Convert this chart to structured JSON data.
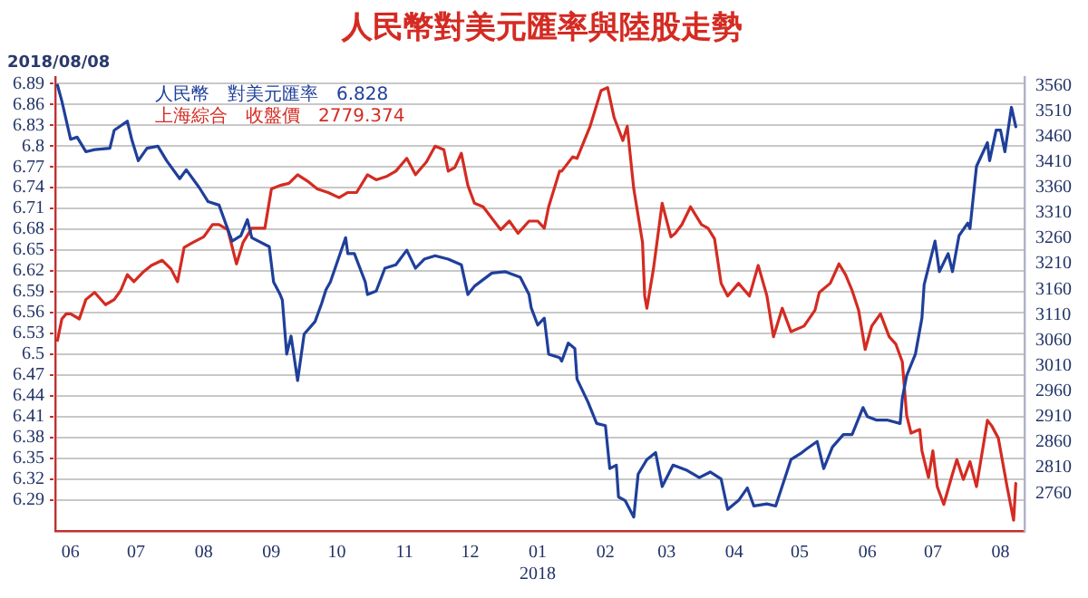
{
  "chart_data": {
    "type": "line",
    "title": "人民幣對美元匯率與陸股走勢",
    "annotations": [
      "2018/08/08"
    ],
    "legend": "top left",
    "grid": "y",
    "marker": "none",
    "line_style": "solid",
    "xlim": [
      "2017-05-25",
      "2018-08-12"
    ],
    "xticks": [
      {
        "value": "2017-06-01",
        "label": "06"
      },
      {
        "value": "2017-07-01",
        "label": "07"
      },
      {
        "value": "2017-08-01",
        "label": "08"
      },
      {
        "value": "2017-09-01",
        "label": "09"
      },
      {
        "value": "2017-10-01",
        "label": "10"
      },
      {
        "value": "2017-11-01",
        "label": "11"
      },
      {
        "value": "2017-12-01",
        "label": "12"
      },
      {
        "value": "2018-01-01",
        "label": "01\n2018"
      },
      {
        "value": "2018-02-01",
        "label": "02"
      },
      {
        "value": "2018-03-01",
        "label": "03"
      },
      {
        "value": "2018-04-01",
        "label": "04"
      },
      {
        "value": "2018-05-01",
        "label": "05"
      },
      {
        "value": "2018-06-01",
        "label": "06"
      },
      {
        "value": "2018-07-01",
        "label": "07"
      },
      {
        "value": "2018-08-01",
        "label": "08"
      }
    ],
    "ylim": [
      6.245,
      6.9
    ],
    "yticks": [
      6.29,
      6.32,
      6.35,
      6.38,
      6.41,
      6.44,
      6.47,
      6.5,
      6.53,
      6.56,
      6.59,
      6.62,
      6.65,
      6.68,
      6.71,
      6.74,
      6.77,
      6.8,
      6.83,
      6.86,
      6.89
    ],
    "y2lim": [
      2686,
      3577
    ],
    "y2ticks": [
      2760,
      2810,
      2860,
      2910,
      2960,
      3010,
      3060,
      3110,
      3160,
      3210,
      3260,
      3310,
      3360,
      3410,
      3460,
      3510,
      3560
    ],
    "series": [
      {
        "name": "人民幣　對美元匯率　6.828",
        "color": "#1f3f9a",
        "axis": "y",
        "x": [
          "2017-05-26",
          "2017-05-28",
          "2017-06-01",
          "2017-06-04",
          "2017-06-08",
          "2017-06-12",
          "2017-06-19",
          "2017-06-21",
          "2017-06-27",
          "2017-06-29",
          "2017-07-02",
          "2017-07-06",
          "2017-07-11",
          "2017-07-15",
          "2017-07-21",
          "2017-07-24",
          "2017-07-30",
          "2017-08-03",
          "2017-08-08",
          "2017-08-14",
          "2017-08-18",
          "2017-08-21",
          "2017-08-23",
          "2017-08-31",
          "2017-09-02",
          "2017-09-05",
          "2017-09-06",
          "2017-09-08",
          "2017-09-10",
          "2017-09-13",
          "2017-09-16",
          "2017-09-21",
          "2017-09-24",
          "2017-09-26",
          "2017-09-28",
          "2017-10-05",
          "2017-10-06",
          "2017-10-09",
          "2017-10-14",
          "2017-10-15",
          "2017-10-19",
          "2017-10-23",
          "2017-10-28",
          "2017-11-02",
          "2017-11-06",
          "2017-11-10",
          "2017-11-15",
          "2017-11-21",
          "2017-11-27",
          "2017-11-30",
          "2017-12-03",
          "2017-12-11",
          "2017-12-17",
          "2017-12-24",
          "2017-12-28",
          "2017-12-29",
          "2018-01-01",
          "2018-01-04",
          "2018-01-06",
          "2018-01-11",
          "2018-01-12",
          "2018-01-15",
          "2018-01-18",
          "2018-01-19",
          "2018-01-24",
          "2018-01-28",
          "2018-02-01",
          "2018-02-03",
          "2018-02-06",
          "2018-02-07",
          "2018-02-10",
          "2018-02-14",
          "2018-02-16",
          "2018-02-20",
          "2018-02-24",
          "2018-02-27",
          "2018-03-04",
          "2018-03-10",
          "2018-03-16",
          "2018-03-21",
          "2018-03-26",
          "2018-03-29",
          "2018-04-03",
          "2018-04-07",
          "2018-04-10",
          "2018-04-16",
          "2018-04-20",
          "2018-04-27",
          "2018-05-02",
          "2018-05-04",
          "2018-05-09",
          "2018-05-12",
          "2018-05-16",
          "2018-05-21",
          "2018-05-25",
          "2018-05-30",
          "2018-06-01",
          "2018-06-05",
          "2018-06-10",
          "2018-06-16",
          "2018-06-17",
          "2018-06-19",
          "2018-06-23",
          "2018-06-26",
          "2018-06-27",
          "2018-07-02",
          "2018-07-04",
          "2018-07-08",
          "2018-07-10",
          "2018-07-13",
          "2018-07-17",
          "2018-07-18",
          "2018-07-21",
          "2018-07-26",
          "2018-07-27",
          "2018-07-30",
          "2018-08-01",
          "2018-08-03",
          "2018-08-06",
          "2018-08-08"
        ],
        "values": [
          6.888,
          6.865,
          6.81,
          6.813,
          6.792,
          6.795,
          6.797,
          6.823,
          6.836,
          6.81,
          6.779,
          6.797,
          6.8,
          6.779,
          6.753,
          6.766,
          6.74,
          6.72,
          6.715,
          6.663,
          6.671,
          6.694,
          6.668,
          6.655,
          6.604,
          6.586,
          6.578,
          6.5,
          6.526,
          6.462,
          6.529,
          6.547,
          6.573,
          6.593,
          6.604,
          6.668,
          6.645,
          6.645,
          6.604,
          6.586,
          6.591,
          6.624,
          6.629,
          6.65,
          6.624,
          6.637,
          6.642,
          6.637,
          6.629,
          6.586,
          6.598,
          6.617,
          6.619,
          6.611,
          6.586,
          6.567,
          6.542,
          6.552,
          6.5,
          6.495,
          6.49,
          6.516,
          6.508,
          6.464,
          6.431,
          6.4,
          6.397,
          6.335,
          6.34,
          6.294,
          6.289,
          6.265,
          6.327,
          6.348,
          6.358,
          6.309,
          6.34,
          6.333,
          6.322,
          6.33,
          6.32,
          6.276,
          6.289,
          6.307,
          6.281,
          6.284,
          6.281,
          6.348,
          6.358,
          6.363,
          6.374,
          6.335,
          6.366,
          6.384,
          6.384,
          6.423,
          6.41,
          6.405,
          6.405,
          6.4,
          6.436,
          6.469,
          6.5,
          6.552,
          6.6,
          6.663,
          6.619,
          6.645,
          6.619,
          6.671,
          6.689,
          6.681,
          6.771,
          6.805,
          6.779,
          6.823,
          6.823,
          6.792,
          6.856,
          6.828
        ]
      },
      {
        "name": "上海綜合　收盤價　2779.374",
        "color": "#d42b22",
        "axis": "y2",
        "x": [
          "2017-05-26",
          "2017-05-28",
          "2017-05-30",
          "2017-06-01",
          "2017-06-05",
          "2017-06-08",
          "2017-06-12",
          "2017-06-17",
          "2017-06-21",
          "2017-06-24",
          "2017-06-27",
          "2017-06-30",
          "2017-07-04",
          "2017-07-08",
          "2017-07-13",
          "2017-07-17",
          "2017-07-20",
          "2017-07-23",
          "2017-07-27",
          "2017-08-01",
          "2017-08-05",
          "2017-08-08",
          "2017-08-12",
          "2017-08-16",
          "2017-08-19",
          "2017-08-23",
          "2017-08-29",
          "2017-09-01",
          "2017-09-05",
          "2017-09-09",
          "2017-09-13",
          "2017-09-18",
          "2017-09-22",
          "2017-09-27",
          "2017-10-02",
          "2017-10-06",
          "2017-10-10",
          "2017-10-15",
          "2017-10-19",
          "2017-10-24",
          "2017-10-28",
          "2017-11-02",
          "2017-11-06",
          "2017-11-11",
          "2017-11-15",
          "2017-11-19",
          "2017-11-21",
          "2017-11-24",
          "2017-11-27",
          "2017-11-30",
          "2017-12-03",
          "2017-12-07",
          "2017-12-15",
          "2017-12-19",
          "2017-12-23",
          "2017-12-28",
          "2018-01-01",
          "2018-01-04",
          "2018-01-06",
          "2018-01-11",
          "2018-01-12",
          "2018-01-17",
          "2018-01-19",
          "2018-01-25",
          "2018-01-30",
          "2018-02-02",
          "2018-02-05",
          "2018-02-09",
          "2018-02-11",
          "2018-02-14",
          "2018-02-18",
          "2018-02-19",
          "2018-02-20",
          "2018-02-23",
          "2018-02-27",
          "2018-03-03",
          "2018-03-05",
          "2018-03-08",
          "2018-03-12",
          "2018-03-17",
          "2018-03-20",
          "2018-03-23",
          "2018-03-26",
          "2018-03-29",
          "2018-04-03",
          "2018-04-08",
          "2018-04-12",
          "2018-04-16",
          "2018-04-19",
          "2018-04-23",
          "2018-04-27",
          "2018-05-03",
          "2018-05-08",
          "2018-05-10",
          "2018-05-15",
          "2018-05-19",
          "2018-05-22",
          "2018-05-25",
          "2018-05-28",
          "2018-05-31",
          "2018-06-03",
          "2018-06-07",
          "2018-06-11",
          "2018-06-14",
          "2018-06-17",
          "2018-06-19",
          "2018-06-21",
          "2018-06-25",
          "2018-06-26",
          "2018-06-29",
          "2018-07-01",
          "2018-07-03",
          "2018-07-06",
          "2018-07-10",
          "2018-07-12",
          "2018-07-15",
          "2018-07-18",
          "2018-07-21",
          "2018-07-26",
          "2018-07-28",
          "2018-07-31",
          "2018-08-04",
          "2018-08-07",
          "2018-08-08"
        ],
        "values": [
          3060,
          3102,
          3112,
          3112,
          3102,
          3140,
          3154,
          3130,
          3140,
          3158,
          3189,
          3175,
          3193,
          3207,
          3217,
          3200,
          3175,
          3242,
          3252,
          3263,
          3287,
          3287,
          3277,
          3210,
          3252,
          3280,
          3280,
          3357,
          3364,
          3368,
          3385,
          3371,
          3357,
          3350,
          3340,
          3350,
          3350,
          3385,
          3375,
          3382,
          3392,
          3417,
          3385,
          3410,
          3441,
          3434,
          3392,
          3399,
          3427,
          3364,
          3329,
          3322,
          3277,
          3294,
          3270,
          3294,
          3294,
          3280,
          3322,
          3392,
          3392,
          3420,
          3417,
          3480,
          3550,
          3556,
          3497,
          3452,
          3480,
          3357,
          3252,
          3147,
          3123,
          3200,
          3329,
          3263,
          3270,
          3287,
          3322,
          3287,
          3280,
          3259,
          3172,
          3147,
          3172,
          3147,
          3207,
          3147,
          3067,
          3123,
          3077,
          3088,
          3119,
          3154,
          3172,
          3210,
          3189,
          3158,
          3119,
          3042,
          3088,
          3112,
          3067,
          3053,
          3018,
          2913,
          2878,
          2885,
          2843,
          2791,
          2843,
          2773,
          2738,
          2798,
          2826,
          2787,
          2822,
          2773,
          2903,
          2892,
          2868,
          2773,
          2707,
          2779.374
        ]
      }
    ]
  }
}
